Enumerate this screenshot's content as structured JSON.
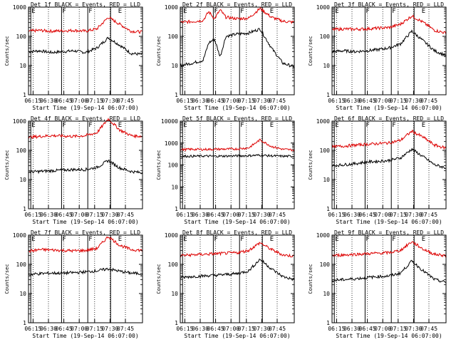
{
  "chart_data": [
    {
      "type": "line",
      "title": "Det 1f BLACK = Events, RED = LLD",
      "ylabel": "Counts/sec",
      "xlabel": "Start Time (19-Sep-14 06:07:00)",
      "ylim": [
        1,
        1000
      ],
      "yscale": "log",
      "y_ticks": [
        "1",
        "10",
        "100",
        "1000"
      ],
      "x_ticks": [
        "06:15",
        "06:30",
        "06:45",
        "07:00",
        "07:15",
        "07:30",
        "07:45"
      ],
      "markers": [
        "E",
        "F",
        "F",
        "E"
      ],
      "series": [
        {
          "name": "Events",
          "color": "#000000",
          "x": [
            0,
            10,
            20,
            30,
            40,
            50,
            60,
            70,
            80,
            90,
            100
          ],
          "values": [
            30,
            32,
            28,
            30,
            32,
            28,
            40,
            90,
            50,
            26,
            24
          ]
        },
        {
          "name": "LLD",
          "color": "#dd0000",
          "x": [
            0,
            10,
            20,
            30,
            40,
            50,
            60,
            70,
            80,
            90,
            100
          ],
          "values": [
            150,
            160,
            150,
            155,
            160,
            150,
            180,
            450,
            260,
            150,
            140
          ]
        }
      ]
    },
    {
      "type": "line",
      "title": "Det 2f BLACK = Events, RED = LLD",
      "ylabel": "Counts/sec",
      "xlabel": "Start Time (19-Sep-14 06:07:00)",
      "ylim": [
        1,
        1000
      ],
      "yscale": "log",
      "y_ticks": [
        "1",
        "10",
        "100",
        "1000"
      ],
      "x_ticks": [
        "06:15",
        "06:30",
        "06:45",
        "07:00",
        "07:15",
        "07:30",
        "07:45"
      ],
      "markers": [
        "E",
        "F",
        "F",
        "E"
      ],
      "series": [
        {
          "name": "Events",
          "color": "#000000",
          "x": [
            0,
            10,
            20,
            25,
            30,
            35,
            40,
            50,
            60,
            70,
            80,
            90,
            100
          ],
          "values": [
            10,
            12,
            15,
            60,
            80,
            20,
            100,
            120,
            130,
            180,
            40,
            12,
            9
          ]
        },
        {
          "name": "LLD",
          "color": "#dd0000",
          "x": [
            0,
            10,
            20,
            25,
            30,
            35,
            40,
            50,
            60,
            70,
            80,
            90,
            100
          ],
          "values": [
            300,
            320,
            350,
            700,
            400,
            800,
            450,
            400,
            420,
            900,
            450,
            330,
            300
          ]
        }
      ]
    },
    {
      "type": "line",
      "title": "Det 3f BLACK = Events, RED = LLD",
      "ylabel": "Counts/sec",
      "xlabel": "Start Time (19-Sep-14 06:07:00)",
      "ylim": [
        1,
        1000
      ],
      "yscale": "log",
      "y_ticks": [
        "1",
        "10",
        "100",
        "1000"
      ],
      "x_ticks": [
        "06:15",
        "06:30",
        "06:45",
        "07:00",
        "07:15",
        "07:30",
        "07:45"
      ],
      "markers": [
        "E",
        "F",
        "F",
        "E"
      ],
      "series": [
        {
          "name": "Events",
          "color": "#000000",
          "x": [
            0,
            10,
            20,
            30,
            40,
            50,
            60,
            70,
            80,
            90,
            100
          ],
          "values": [
            30,
            32,
            30,
            32,
            35,
            40,
            55,
            150,
            70,
            32,
            22
          ]
        },
        {
          "name": "LLD",
          "color": "#dd0000",
          "x": [
            0,
            10,
            20,
            30,
            40,
            50,
            60,
            70,
            80,
            90,
            100
          ],
          "values": [
            170,
            180,
            175,
            180,
            190,
            200,
            260,
            500,
            300,
            160,
            130
          ]
        }
      ]
    },
    {
      "type": "line",
      "title": "Det 4f BLACK = Events, RED = LLD",
      "ylabel": "Counts/sec",
      "xlabel": "Start Time (19-Sep-14 06:07:00)",
      "ylim": [
        1,
        1000
      ],
      "yscale": "log",
      "y_ticks": [
        "1",
        "10",
        "100",
        "1000"
      ],
      "x_ticks": [
        "06:15",
        "06:30",
        "06:45",
        "07:00",
        "07:15",
        "07:30",
        "07:45"
      ],
      "markers": [
        "E",
        "F",
        "F",
        "E"
      ],
      "series": [
        {
          "name": "Events",
          "color": "#000000",
          "x": [
            0,
            10,
            20,
            30,
            40,
            50,
            60,
            70,
            80,
            90,
            100
          ],
          "values": [
            18,
            19,
            20,
            21,
            22,
            22,
            26,
            45,
            25,
            19,
            17
          ]
        },
        {
          "name": "LLD",
          "color": "#dd0000",
          "x": [
            0,
            10,
            20,
            30,
            40,
            50,
            60,
            70,
            80,
            90,
            100
          ],
          "values": [
            280,
            300,
            320,
            310,
            300,
            320,
            400,
            1200,
            500,
            320,
            300
          ]
        }
      ]
    },
    {
      "type": "line",
      "title": "Det 5f BLACK = Events, RED = LLD",
      "ylabel": "Counts/sec",
      "xlabel": "Start Time (19-Sep-14 06:07:00)",
      "ylim": [
        1,
        10000
      ],
      "yscale": "log",
      "y_ticks": [
        "1",
        "10",
        "100",
        "1000",
        "10000"
      ],
      "x_ticks": [
        "06:15",
        "06:30",
        "06:45",
        "07:00",
        "07:15",
        "07:30",
        "07:45"
      ],
      "markers": [
        "E",
        "F",
        "F",
        "E"
      ],
      "series": [
        {
          "name": "Events",
          "color": "#000000",
          "x": [
            0,
            10,
            20,
            30,
            40,
            50,
            60,
            70,
            80,
            90,
            100
          ],
          "values": [
            250,
            250,
            255,
            250,
            255,
            260,
            265,
            280,
            260,
            250,
            250
          ]
        },
        {
          "name": "LLD",
          "color": "#dd0000",
          "x": [
            0,
            10,
            20,
            30,
            40,
            50,
            60,
            70,
            80,
            90,
            100
          ],
          "values": [
            500,
            520,
            510,
            520,
            530,
            540,
            600,
            1400,
            700,
            520,
            480
          ]
        }
      ]
    },
    {
      "type": "line",
      "title": "Det 6f BLACK = Events, RED = LLD",
      "ylabel": "Counts/sec",
      "xlabel": "Start Time (19-Sep-14 06:07:00)",
      "ylim": [
        1,
        1000
      ],
      "yscale": "log",
      "y_ticks": [
        "1",
        "10",
        "100",
        "1000"
      ],
      "x_ticks": [
        "06:15",
        "06:30",
        "06:45",
        "07:00",
        "07:15",
        "07:30",
        "07:45"
      ],
      "markers": [
        "E",
        "F",
        "F",
        "E"
      ],
      "series": [
        {
          "name": "Events",
          "color": "#000000",
          "x": [
            0,
            10,
            20,
            30,
            40,
            50,
            60,
            70,
            80,
            90,
            100
          ],
          "values": [
            30,
            32,
            35,
            40,
            42,
            45,
            55,
            110,
            60,
            32,
            25
          ]
        },
        {
          "name": "LLD",
          "color": "#dd0000",
          "x": [
            0,
            10,
            20,
            30,
            40,
            50,
            60,
            70,
            80,
            90,
            100
          ],
          "values": [
            130,
            140,
            150,
            160,
            170,
            180,
            220,
            450,
            280,
            150,
            120
          ]
        }
      ]
    },
    {
      "type": "line",
      "title": "Det 7f BLACK = Events, RED = LLD",
      "ylabel": "Counts/sec",
      "xlabel": "Start Time (19-Sep-14 06:07:00)",
      "ylim": [
        1,
        1000
      ],
      "yscale": "log",
      "y_ticks": [
        "1",
        "10",
        "100",
        "1000"
      ],
      "x_ticks": [
        "06:15",
        "06:30",
        "06:45",
        "07:00",
        "07:15",
        "07:30",
        "07:45"
      ],
      "markers": [
        "E",
        "F",
        "F",
        "E"
      ],
      "series": [
        {
          "name": "Events",
          "color": "#000000",
          "x": [
            0,
            10,
            20,
            30,
            40,
            50,
            60,
            70,
            80,
            90,
            100
          ],
          "values": [
            45,
            48,
            50,
            50,
            52,
            55,
            60,
            70,
            58,
            50,
            48
          ]
        },
        {
          "name": "LLD",
          "color": "#dd0000",
          "x": [
            0,
            10,
            20,
            30,
            40,
            50,
            60,
            70,
            80,
            90,
            100
          ],
          "values": [
            280,
            320,
            310,
            300,
            290,
            300,
            350,
            900,
            450,
            320,
            300
          ]
        }
      ]
    },
    {
      "type": "line",
      "title": "Det 8f BLACK = Events, RED = LLD",
      "ylabel": "Counts/sec",
      "xlabel": "Start Time (19-Sep-14 06:07:00)",
      "ylim": [
        1,
        1000
      ],
      "yscale": "log",
      "y_ticks": [
        "1",
        "10",
        "100",
        "1000"
      ],
      "x_ticks": [
        "06:15",
        "06:30",
        "06:45",
        "07:00",
        "07:15",
        "07:30",
        "07:45"
      ],
      "markers": [
        "E",
        "F",
        "F",
        "E"
      ],
      "series": [
        {
          "name": "Events",
          "color": "#000000",
          "x": [
            0,
            10,
            20,
            30,
            40,
            50,
            60,
            70,
            80,
            90,
            100
          ],
          "values": [
            35,
            38,
            40,
            42,
            45,
            48,
            60,
            150,
            70,
            38,
            30
          ]
        },
        {
          "name": "LLD",
          "color": "#dd0000",
          "x": [
            0,
            10,
            20,
            30,
            40,
            50,
            60,
            70,
            80,
            90,
            100
          ],
          "values": [
            200,
            210,
            220,
            230,
            240,
            250,
            300,
            550,
            320,
            210,
            190
          ]
        }
      ]
    },
    {
      "type": "line",
      "title": "Det 9f BLACK = Events, RED = LLD",
      "ylabel": "Counts/sec",
      "xlabel": "Start Time (19-Sep-14 06:07:00)",
      "ylim": [
        1,
        1000
      ],
      "yscale": "log",
      "y_ticks": [
        "1",
        "10",
        "100",
        "1000"
      ],
      "x_ticks": [
        "06:15",
        "06:30",
        "06:45",
        "07:00",
        "07:15",
        "07:30",
        "07:45"
      ],
      "markers": [
        "E",
        "F",
        "F",
        "E"
      ],
      "series": [
        {
          "name": "Events",
          "color": "#000000",
          "x": [
            0,
            10,
            20,
            30,
            40,
            50,
            60,
            70,
            80,
            90,
            100
          ],
          "values": [
            28,
            30,
            32,
            35,
            38,
            40,
            50,
            130,
            60,
            30,
            24
          ]
        },
        {
          "name": "LLD",
          "color": "#dd0000",
          "x": [
            0,
            10,
            20,
            30,
            40,
            50,
            60,
            70,
            80,
            90,
            100
          ],
          "values": [
            200,
            210,
            220,
            230,
            240,
            250,
            300,
            600,
            330,
            220,
            200
          ]
        }
      ]
    }
  ]
}
